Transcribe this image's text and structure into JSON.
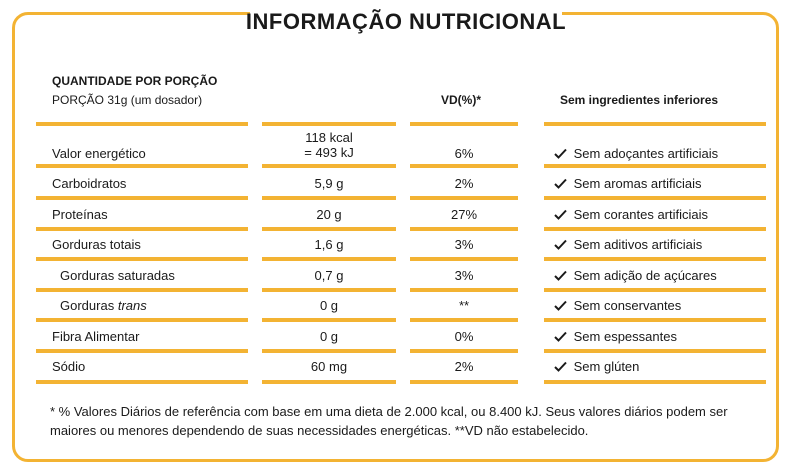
{
  "title": "INFORMAÇÃO NUTRICIONAL",
  "header": {
    "serving_title": "QUANTIDADE POR PORÇÃO",
    "serving_size": "PORÇÃO 31g (um dosador)",
    "vd_label": "VD(%)*",
    "free_from_title": "Sem ingredientes inferiores"
  },
  "nutrients": [
    {
      "name": "Valor energético",
      "amount_line1": "118 kcal",
      "amount_line2": "= 493 kJ",
      "vd": "6%"
    },
    {
      "name": "Carboidratos",
      "amount": "5,9 g",
      "vd": "2%"
    },
    {
      "name": "Proteínas",
      "amount": "20 g",
      "vd": "27%"
    },
    {
      "name": "Gorduras totais",
      "amount": "1,6 g",
      "vd": "3%"
    },
    {
      "name": "Gorduras saturadas",
      "amount": "0,7 g",
      "vd": "3%"
    },
    {
      "name": "Gorduras",
      "name_italic": "trans",
      "amount": "0 g",
      "vd": "**"
    },
    {
      "name": "Fibra Alimentar",
      "amount": "0 g",
      "vd": "0%"
    },
    {
      "name": "Sódio",
      "amount": "60 mg",
      "vd": "2%"
    }
  ],
  "free_from": [
    "Sem adoçantes artificiais",
    "Sem aromas artificiais",
    "Sem corantes artificiais",
    "Sem aditivos artificiais",
    "Sem adição de açúcares",
    "Sem conservantes",
    "Sem espessantes",
    "Sem glúten"
  ],
  "footnote": "* % Valores Diários de referência com base em uma dieta de 2.000 kcal, ou 8.400 kJ. Seus valores diários podem ser maiores ou menores dependendo de suas necessidades energéticas. **VD não estabelecido.",
  "colors": {
    "accent": "#f3b333",
    "text": "#1a1a1a"
  },
  "icons": {
    "check": "check-icon"
  }
}
